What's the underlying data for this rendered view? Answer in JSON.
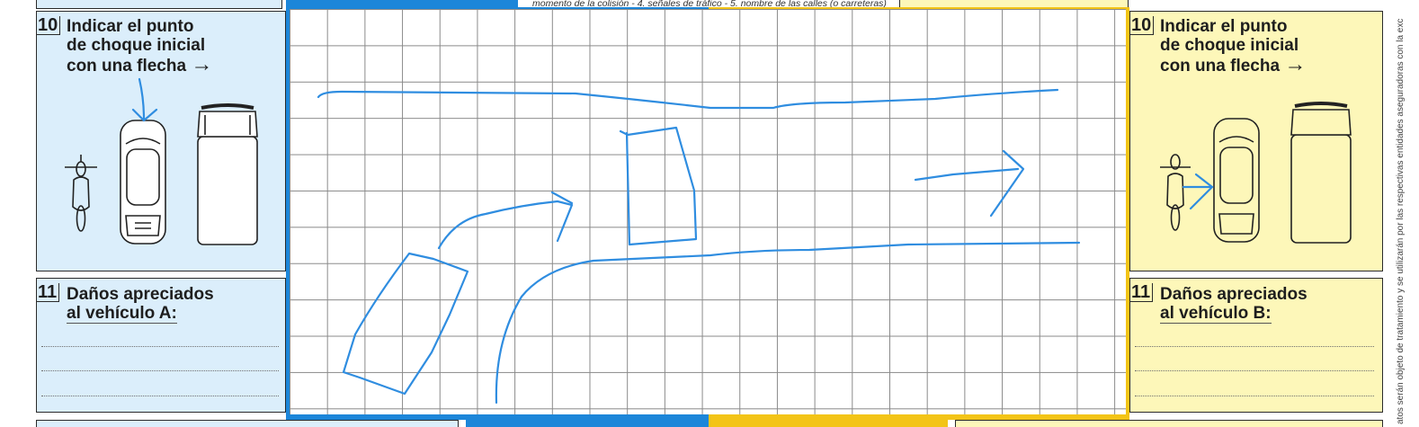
{
  "header_note": "momento de la colisión - 4. señales de tráfico - 5. nombre de las calles (o carreteras)",
  "side_note": "atos serán objeto de tratamiento y se utilizarán por las respectivas entidades aseguradoras con la exc",
  "vehicle_a": {
    "impact_section": {
      "number": "10",
      "line1": "Indicar el punto",
      "line2": "de choque inicial",
      "line3": "con una flecha",
      "arrow": "→"
    },
    "damage_section": {
      "number": "11",
      "line1": "Daños apreciados",
      "line2": "al vehículo A:"
    }
  },
  "vehicle_b": {
    "impact_section": {
      "number": "10",
      "line1": "Indicar el punto",
      "line2": "de choque inicial",
      "line3": "con una flecha",
      "arrow": "→"
    },
    "damage_section": {
      "number": "11",
      "line1": "Daños apreciados",
      "line2": "al vehículo B:"
    }
  },
  "colors": {
    "vehicle_a_panel": "#dbeefb",
    "vehicle_a_border": "#1c86d9",
    "vehicle_b_panel": "#fdf7b9",
    "vehicle_b_border": "#f3c417",
    "sketch_ink": "#2f8de0"
  },
  "icons": [
    "motorcycle-icon",
    "car-top-view-icon",
    "truck-top-view-icon",
    "handdrawn-arrow-icon"
  ]
}
